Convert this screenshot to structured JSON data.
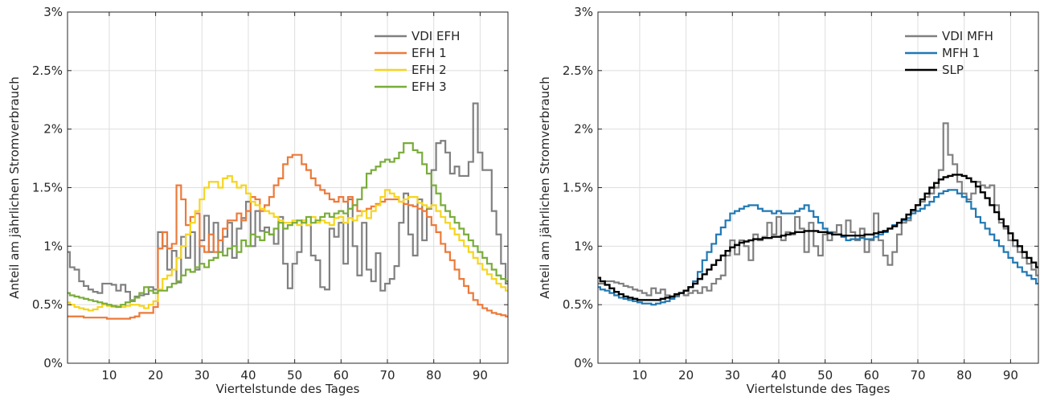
{
  "chart_data": [
    {
      "type": "line",
      "step": true,
      "title": "",
      "xlabel": "Viertelstunde des Tages",
      "ylabel": "Anteil am jährlichen Stromverbrauch",
      "xlim": [
        1,
        96
      ],
      "ylim": [
        0,
        3
      ],
      "x_ticks": [
        10,
        20,
        30,
        40,
        50,
        60,
        70,
        80,
        90
      ],
      "y_ticks": [
        0,
        0.5,
        1,
        1.5,
        2,
        2.5,
        3
      ],
      "y_tick_labels": [
        "0%",
        "0.5%",
        "1%",
        "1.5%",
        "2%",
        "2.5%",
        "3%"
      ],
      "y_unit": "%",
      "grid": true,
      "legend": "top-right",
      "series": [
        {
          "name": "VDI EFH",
          "color": "#808080",
          "values": [
            0.95,
            0.82,
            0.8,
            0.7,
            0.66,
            0.63,
            0.61,
            0.6,
            0.68,
            0.68,
            0.67,
            0.62,
            0.67,
            0.61,
            0.53,
            0.57,
            0.58,
            0.59,
            0.65,
            0.63,
            1.12,
            1.0,
            0.8,
            0.96,
            0.69,
            1.08,
            0.9,
            1.12,
            0.8,
            1.05,
            1.26,
            0.95,
            1.2,
            0.95,
            1.08,
            1.2,
            0.9,
            1.15,
            1.24,
            1.38,
            1.0,
            1.3,
            1.13,
            1.16,
            1.1,
            1.02,
            1.25,
            0.85,
            0.64,
            0.85,
            0.95,
            1.22,
            1.18,
            0.92,
            0.88,
            0.65,
            0.63,
            1.15,
            1.08,
            1.2,
            0.85,
            1.4,
            1.0,
            0.75,
            1.2,
            0.8,
            0.7,
            0.94,
            0.62,
            0.68,
            0.72,
            0.83,
            1.2,
            1.45,
            1.1,
            0.92,
            1.4,
            1.05,
            1.32,
            1.65,
            1.88,
            1.9,
            1.8,
            1.62,
            1.68,
            1.6,
            1.6,
            1.72,
            2.22,
            1.8,
            1.65,
            1.65,
            1.3,
            1.1,
            0.85,
            0.68
          ]
        },
        {
          "name": "EFH 1",
          "color": "#ec7a3a",
          "values": [
            0.4,
            0.4,
            0.4,
            0.4,
            0.39,
            0.39,
            0.39,
            0.39,
            0.39,
            0.38,
            0.38,
            0.38,
            0.38,
            0.38,
            0.39,
            0.4,
            0.43,
            0.43,
            0.43,
            0.48,
            0.98,
            1.12,
            0.98,
            1.02,
            1.52,
            1.4,
            1.18,
            1.25,
            1.28,
            1.0,
            0.95,
            1.1,
            0.95,
            1.05,
            1.15,
            1.22,
            1.22,
            1.28,
            1.22,
            1.3,
            1.42,
            1.4,
            1.3,
            1.35,
            1.42,
            1.52,
            1.58,
            1.7,
            1.76,
            1.78,
            1.78,
            1.7,
            1.65,
            1.58,
            1.52,
            1.48,
            1.45,
            1.4,
            1.38,
            1.42,
            1.38,
            1.42,
            1.35,
            1.3,
            1.3,
            1.32,
            1.34,
            1.36,
            1.38,
            1.4,
            1.4,
            1.4,
            1.38,
            1.36,
            1.35,
            1.34,
            1.32,
            1.3,
            1.25,
            1.18,
            1.12,
            1.02,
            0.95,
            0.88,
            0.8,
            0.72,
            0.66,
            0.6,
            0.54,
            0.5,
            0.47,
            0.45,
            0.43,
            0.42,
            0.41,
            0.4
          ]
        },
        {
          "name": "EFH 2",
          "color": "#f5d520",
          "values": [
            0.52,
            0.5,
            0.48,
            0.47,
            0.46,
            0.45,
            0.46,
            0.48,
            0.5,
            0.49,
            0.48,
            0.49,
            0.48,
            0.49,
            0.5,
            0.5,
            0.49,
            0.47,
            0.5,
            0.53,
            0.63,
            0.72,
            0.75,
            0.8,
            0.9,
            1.0,
            1.1,
            1.2,
            1.3,
            1.4,
            1.5,
            1.55,
            1.55,
            1.5,
            1.58,
            1.6,
            1.55,
            1.5,
            1.52,
            1.45,
            1.38,
            1.35,
            1.32,
            1.3,
            1.28,
            1.25,
            1.22,
            1.2,
            1.2,
            1.22,
            1.18,
            1.22,
            1.18,
            1.25,
            1.2,
            1.22,
            1.2,
            1.18,
            1.24,
            1.25,
            1.2,
            1.24,
            1.22,
            1.26,
            1.3,
            1.24,
            1.3,
            1.35,
            1.42,
            1.48,
            1.45,
            1.42,
            1.38,
            1.4,
            1.42,
            1.42,
            1.37,
            1.35,
            1.33,
            1.35,
            1.3,
            1.25,
            1.2,
            1.15,
            1.1,
            1.05,
            1.0,
            0.95,
            0.9,
            0.85,
            0.8,
            0.76,
            0.72,
            0.68,
            0.65,
            0.62
          ]
        },
        {
          "name": "EFH 3",
          "color": "#79ac3a",
          "values": [
            0.6,
            0.58,
            0.57,
            0.56,
            0.55,
            0.54,
            0.53,
            0.52,
            0.51,
            0.5,
            0.49,
            0.48,
            0.5,
            0.52,
            0.54,
            0.56,
            0.6,
            0.65,
            0.62,
            0.6,
            0.62,
            0.62,
            0.65,
            0.68,
            0.7,
            0.75,
            0.8,
            0.78,
            0.82,
            0.85,
            0.82,
            0.88,
            0.9,
            0.95,
            0.92,
            0.98,
            1.0,
            0.95,
            1.05,
            1.0,
            1.1,
            1.08,
            1.05,
            1.12,
            1.1,
            1.15,
            1.2,
            1.15,
            1.18,
            1.2,
            1.22,
            1.2,
            1.25,
            1.2,
            1.22,
            1.25,
            1.28,
            1.25,
            1.28,
            1.3,
            1.28,
            1.32,
            1.35,
            1.4,
            1.5,
            1.62,
            1.65,
            1.68,
            1.72,
            1.74,
            1.72,
            1.75,
            1.8,
            1.88,
            1.88,
            1.82,
            1.8,
            1.7,
            1.62,
            1.52,
            1.45,
            1.35,
            1.3,
            1.25,
            1.2,
            1.15,
            1.1,
            1.05,
            1.0,
            0.95,
            0.9,
            0.85,
            0.8,
            0.75,
            0.72,
            0.7
          ]
        }
      ]
    },
    {
      "type": "line",
      "step": true,
      "title": "",
      "xlabel": "Viertelstunde des Tages",
      "ylabel": "Anteil am jährlichen Stromverbrauch",
      "xlim": [
        1,
        96
      ],
      "ylim": [
        0,
        3
      ],
      "x_ticks": [
        10,
        20,
        30,
        40,
        50,
        60,
        70,
        80,
        90
      ],
      "y_ticks": [
        0,
        0.5,
        1,
        1.5,
        2,
        2.5,
        3
      ],
      "y_tick_labels": [
        "0%",
        "0.5%",
        "1%",
        "1.5%",
        "2%",
        "2.5%",
        "3%"
      ],
      "y_unit": "%",
      "grid": true,
      "legend": "top-right",
      "series": [
        {
          "name": "VDI MFH",
          "color": "#808080",
          "values": [
            0.68,
            0.68,
            0.7,
            0.7,
            0.69,
            0.68,
            0.66,
            0.65,
            0.63,
            0.62,
            0.6,
            0.58,
            0.64,
            0.6,
            0.63,
            0.58,
            0.56,
            0.57,
            0.6,
            0.58,
            0.6,
            0.62,
            0.6,
            0.65,
            0.62,
            0.68,
            0.72,
            0.75,
            0.92,
            1.05,
            0.93,
            1.05,
            1.0,
            0.88,
            1.1,
            1.05,
            1.08,
            1.2,
            1.1,
            1.25,
            1.05,
            1.12,
            1.1,
            1.25,
            1.15,
            0.95,
            1.2,
            1.0,
            0.92,
            1.1,
            1.05,
            1.12,
            1.18,
            1.08,
            1.22,
            1.12,
            1.05,
            1.15,
            0.95,
            1.05,
            1.28,
            1.05,
            0.92,
            0.84,
            0.95,
            1.1,
            1.2,
            1.22,
            1.3,
            1.35,
            1.38,
            1.42,
            1.45,
            1.5,
            1.65,
            2.05,
            1.78,
            1.7,
            1.55,
            1.45,
            1.4,
            1.45,
            1.55,
            1.52,
            1.5,
            1.52,
            1.35,
            1.2,
            1.15,
            1.05,
            1.0,
            0.95,
            0.9,
            0.85,
            0.8,
            0.75
          ]
        },
        {
          "name": "MFH 1",
          "color": "#1f78b4",
          "values": [
            0.65,
            0.63,
            0.62,
            0.6,
            0.58,
            0.56,
            0.55,
            0.54,
            0.53,
            0.52,
            0.51,
            0.51,
            0.5,
            0.51,
            0.52,
            0.53,
            0.55,
            0.58,
            0.6,
            0.62,
            0.65,
            0.7,
            0.78,
            0.88,
            0.95,
            1.02,
            1.1,
            1.16,
            1.22,
            1.28,
            1.3,
            1.32,
            1.34,
            1.35,
            1.35,
            1.32,
            1.3,
            1.3,
            1.28,
            1.3,
            1.28,
            1.28,
            1.28,
            1.3,
            1.32,
            1.35,
            1.3,
            1.25,
            1.2,
            1.15,
            1.12,
            1.1,
            1.1,
            1.08,
            1.05,
            1.06,
            1.06,
            1.07,
            1.06,
            1.06,
            1.08,
            1.1,
            1.12,
            1.15,
            1.18,
            1.2,
            1.22,
            1.24,
            1.28,
            1.3,
            1.32,
            1.35,
            1.38,
            1.42,
            1.45,
            1.47,
            1.48,
            1.48,
            1.45,
            1.42,
            1.38,
            1.32,
            1.25,
            1.2,
            1.15,
            1.1,
            1.05,
            1.0,
            0.95,
            0.9,
            0.86,
            0.82,
            0.78,
            0.75,
            0.72,
            0.68
          ]
        },
        {
          "name": "SLP",
          "color": "#000000",
          "values": [
            0.73,
            0.7,
            0.67,
            0.64,
            0.61,
            0.59,
            0.57,
            0.56,
            0.55,
            0.54,
            0.54,
            0.54,
            0.54,
            0.54,
            0.55,
            0.56,
            0.57,
            0.59,
            0.6,
            0.62,
            0.65,
            0.68,
            0.72,
            0.76,
            0.8,
            0.84,
            0.88,
            0.92,
            0.96,
            0.99,
            1.01,
            1.03,
            1.04,
            1.05,
            1.06,
            1.06,
            1.07,
            1.07,
            1.08,
            1.08,
            1.09,
            1.1,
            1.11,
            1.12,
            1.12,
            1.13,
            1.13,
            1.13,
            1.12,
            1.12,
            1.11,
            1.1,
            1.1,
            1.09,
            1.09,
            1.09,
            1.09,
            1.09,
            1.1,
            1.1,
            1.11,
            1.12,
            1.13,
            1.15,
            1.17,
            1.2,
            1.23,
            1.27,
            1.31,
            1.35,
            1.4,
            1.45,
            1.5,
            1.54,
            1.57,
            1.59,
            1.6,
            1.61,
            1.61,
            1.6,
            1.58,
            1.55,
            1.51,
            1.46,
            1.41,
            1.35,
            1.29,
            1.23,
            1.17,
            1.11,
            1.05,
            1.0,
            0.95,
            0.9,
            0.86,
            0.82
          ]
        }
      ]
    }
  ]
}
